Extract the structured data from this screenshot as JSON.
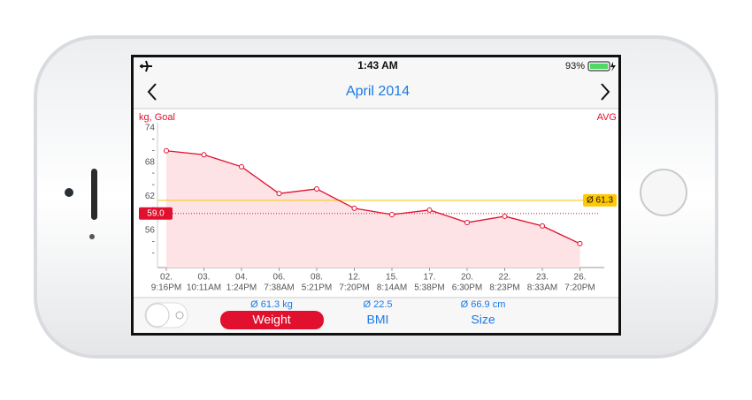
{
  "status_bar": {
    "time": "1:43 AM",
    "battery": "93%"
  },
  "header": {
    "title": "April 2014"
  },
  "chart_data": {
    "type": "line",
    "y_label": "kg, Goal",
    "avg_label": "AVG",
    "categories": [
      "02.",
      "03.",
      "04.",
      "06.",
      "08.",
      "12.",
      "15.",
      "17.",
      "20.",
      "22.",
      "23.",
      "26."
    ],
    "category_times": [
      "9:16PM",
      "10:11AM",
      "1:24PM",
      "7:38AM",
      "5:21PM",
      "7:20PM",
      "8:14AM",
      "5:38PM",
      "6:30PM",
      "8:23PM",
      "8:33AM",
      "7:20PM"
    ],
    "values": [
      70.0,
      69.3,
      67.2,
      62.5,
      63.3,
      59.9,
      58.8,
      59.6,
      57.4,
      58.5,
      56.8,
      53.7
    ],
    "color": "#e0102e",
    "area_color": "#fde3e6",
    "goal": {
      "value": 59,
      "label": "59.0"
    },
    "average": {
      "value": 61.3,
      "label": "Ø 61.3"
    },
    "ylim": [
      49.5,
      75
    ],
    "yticks": [
      74,
      {
        "value": 72,
        "label": "-"
      },
      {
        "value": 70,
        "label": "-"
      },
      68,
      {
        "value": 66,
        "label": "-"
      },
      {
        "value": 64,
        "label": "-"
      },
      62,
      {
        "value": 60,
        "label": "-"
      },
      {
        "value": 58,
        "label": "-"
      },
      56,
      {
        "value": 54,
        "label": "-"
      },
      {
        "value": 52,
        "label": "-"
      }
    ]
  },
  "summary": [
    {
      "value": "Ø 61.3 kg",
      "label": "Weight"
    },
    {
      "value": "Ø 22.5",
      "label": "BMI"
    },
    {
      "value": "Ø 66.9 cm",
      "label": "Size"
    }
  ]
}
